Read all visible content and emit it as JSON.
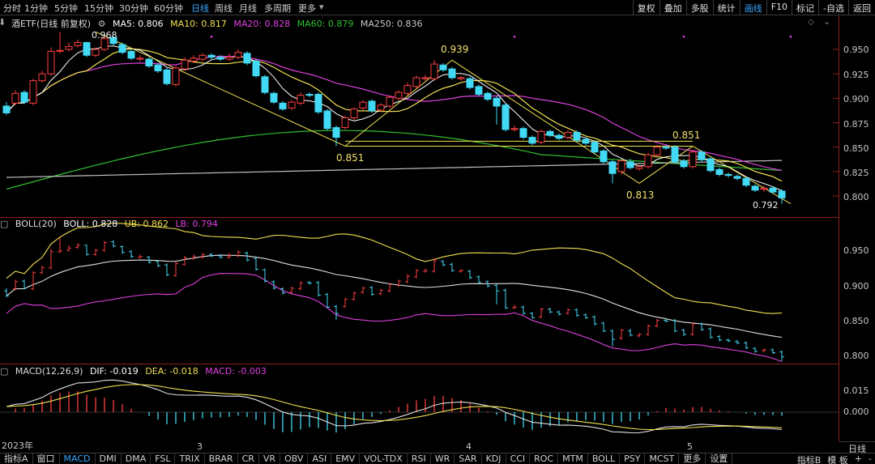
{
  "colors": {
    "up": "#ff4040",
    "down": "#42d9f4",
    "ma5": "#ffffff",
    "ma10": "#f0e050",
    "ma20": "#e040e0",
    "ma60": "#30c030",
    "ma250": "#c0c0c0"
  },
  "period_tabs": [
    "分时",
    "1分钟",
    "5分钟",
    "15分钟",
    "30分钟",
    "60分钟",
    "日线",
    "周线",
    "月线",
    "多周期",
    "更多"
  ],
  "active_period": "日线",
  "right_tools": [
    "复权",
    "叠加",
    "多股",
    "统计",
    "画线",
    "F10",
    "标记",
    "-自选",
    "返回"
  ],
  "active_tool": "画线",
  "main_legend": {
    "name": "酒ETF(日线 前复权)",
    "ma5": "MA5: 0.806",
    "ma10": "MA10: 0.817",
    "ma20": "MA20: 0.828",
    "ma60": "MA60: 0.879",
    "ma250": "MA250: 0.836"
  },
  "boll_legend": {
    "name": "BOLL(20)",
    "boll": "BOLL: 0.828",
    "ub": "UB: 0.862",
    "lb": "LB: 0.794"
  },
  "macd_legend": {
    "name": "MACD(12,26,9)",
    "dif": "DIF: -0.019",
    "dea": "DEA: -0.018",
    "macd": "MACD: -0.003"
  },
  "main_axis": [
    "0.950",
    "0.925",
    "0.900",
    "0.875",
    "0.850",
    "0.825",
    "0.800"
  ],
  "boll_axis": [
    "0.950",
    "0.900",
    "0.850",
    "0.800"
  ],
  "macd_axis": [
    "0.015",
    "0.000"
  ],
  "annotations": [
    "0.968",
    "0.939",
    "0.851",
    "0.851",
    "0.813",
    "0.792"
  ],
  "dates": [
    "2023年",
    "3",
    "4",
    "5"
  ],
  "bottom_tabs": [
    "指标A",
    "窗口",
    "MACD",
    "DMI",
    "DMA",
    "FSL",
    "TRIX",
    "BRAR",
    "CR",
    "VR",
    "OBV",
    "ASI",
    "EMV",
    "VOL-TDX",
    "RSI",
    "WR",
    "SAR",
    "KDJ",
    "CCI",
    "ROC",
    "MTM",
    "BOLL",
    "PSY",
    "MCST",
    "更多",
    "设置"
  ],
  "active_bottom": "MACD",
  "bottom_right": [
    "指标B",
    "模 板",
    "+",
    "-"
  ],
  "cycle_label": "日线",
  "candles": {
    "o": [
      0.892,
      0.895,
      0.906,
      0.895,
      0.918,
      0.925,
      0.948,
      0.95,
      0.954,
      0.957,
      0.944,
      0.95,
      0.962,
      0.955,
      0.948,
      0.94,
      0.94,
      0.934,
      0.929,
      0.914,
      0.93,
      0.938,
      0.94,
      0.944,
      0.942,
      0.94,
      0.942,
      0.946,
      0.938,
      0.922,
      0.905,
      0.895,
      0.89,
      0.895,
      0.904,
      0.904,
      0.887,
      0.87,
      0.87,
      0.88,
      0.89,
      0.897,
      0.888,
      0.892,
      0.9,
      0.905,
      0.912,
      0.92,
      0.92,
      0.934,
      0.93,
      0.92,
      0.92,
      0.912,
      0.905,
      0.9,
      0.893,
      0.868,
      0.869,
      0.86,
      0.855,
      0.866,
      0.862,
      0.86,
      0.865,
      0.858,
      0.855,
      0.846,
      0.835,
      0.825,
      0.835,
      0.828,
      0.83,
      0.842,
      0.85,
      0.85,
      0.836,
      0.83,
      0.845,
      0.838,
      0.827,
      0.822,
      0.82,
      0.818,
      0.81,
      0.807,
      0.808,
      0.805
    ],
    "c": [
      0.885,
      0.905,
      0.896,
      0.918,
      0.925,
      0.948,
      0.949,
      0.953,
      0.957,
      0.944,
      0.95,
      0.961,
      0.956,
      0.947,
      0.941,
      0.941,
      0.933,
      0.928,
      0.915,
      0.931,
      0.939,
      0.941,
      0.944,
      0.942,
      0.94,
      0.942,
      0.947,
      0.936,
      0.923,
      0.906,
      0.896,
      0.889,
      0.896,
      0.903,
      0.903,
      0.886,
      0.869,
      0.86,
      0.88,
      0.889,
      0.896,
      0.887,
      0.893,
      0.901,
      0.906,
      0.913,
      0.921,
      0.921,
      0.935,
      0.929,
      0.921,
      0.921,
      0.911,
      0.904,
      0.899,
      0.892,
      0.868,
      0.869,
      0.86,
      0.854,
      0.866,
      0.862,
      0.859,
      0.865,
      0.857,
      0.854,
      0.845,
      0.835,
      0.823,
      0.836,
      0.829,
      0.83,
      0.842,
      0.85,
      0.849,
      0.835,
      0.83,
      0.845,
      0.837,
      0.826,
      0.822,
      0.821,
      0.818,
      0.811,
      0.806,
      0.808,
      0.804,
      0.798
    ],
    "h": [
      0.896,
      0.908,
      0.908,
      0.92,
      0.928,
      0.952,
      0.968,
      0.957,
      0.96,
      0.958,
      0.952,
      0.963,
      0.964,
      0.957,
      0.95,
      0.944,
      0.942,
      0.936,
      0.931,
      0.933,
      0.942,
      0.944,
      0.946,
      0.946,
      0.944,
      0.946,
      0.95,
      0.948,
      0.94,
      0.924,
      0.907,
      0.897,
      0.898,
      0.906,
      0.906,
      0.906,
      0.889,
      0.872,
      0.882,
      0.891,
      0.898,
      0.899,
      0.895,
      0.903,
      0.908,
      0.916,
      0.923,
      0.924,
      0.939,
      0.936,
      0.932,
      0.923,
      0.922,
      0.914,
      0.907,
      0.902,
      0.895,
      0.872,
      0.871,
      0.862,
      0.868,
      0.868,
      0.864,
      0.867,
      0.867,
      0.86,
      0.857,
      0.848,
      0.837,
      0.838,
      0.838,
      0.832,
      0.844,
      0.852,
      0.852,
      0.852,
      0.838,
      0.847,
      0.847,
      0.84,
      0.829,
      0.824,
      0.822,
      0.82,
      0.812,
      0.81,
      0.81,
      0.807
    ],
    "l": [
      0.883,
      0.893,
      0.894,
      0.893,
      0.916,
      0.923,
      0.946,
      0.948,
      0.952,
      0.942,
      0.942,
      0.948,
      0.954,
      0.945,
      0.939,
      0.938,
      0.931,
      0.926,
      0.913,
      0.912,
      0.928,
      0.936,
      0.938,
      0.94,
      0.938,
      0.938,
      0.94,
      0.934,
      0.921,
      0.904,
      0.894,
      0.887,
      0.888,
      0.893,
      0.901,
      0.884,
      0.867,
      0.851,
      0.868,
      0.878,
      0.888,
      0.885,
      0.886,
      0.89,
      0.898,
      0.903,
      0.91,
      0.918,
      0.918,
      0.927,
      0.919,
      0.918,
      0.909,
      0.902,
      0.897,
      0.873,
      0.866,
      0.866,
      0.858,
      0.852,
      0.853,
      0.86,
      0.857,
      0.858,
      0.855,
      0.852,
      0.843,
      0.833,
      0.813,
      0.822,
      0.827,
      0.826,
      0.828,
      0.84,
      0.847,
      0.833,
      0.828,
      0.828,
      0.835,
      0.824,
      0.82,
      0.819,
      0.816,
      0.809,
      0.804,
      0.804,
      0.802,
      0.792
    ]
  }
}
